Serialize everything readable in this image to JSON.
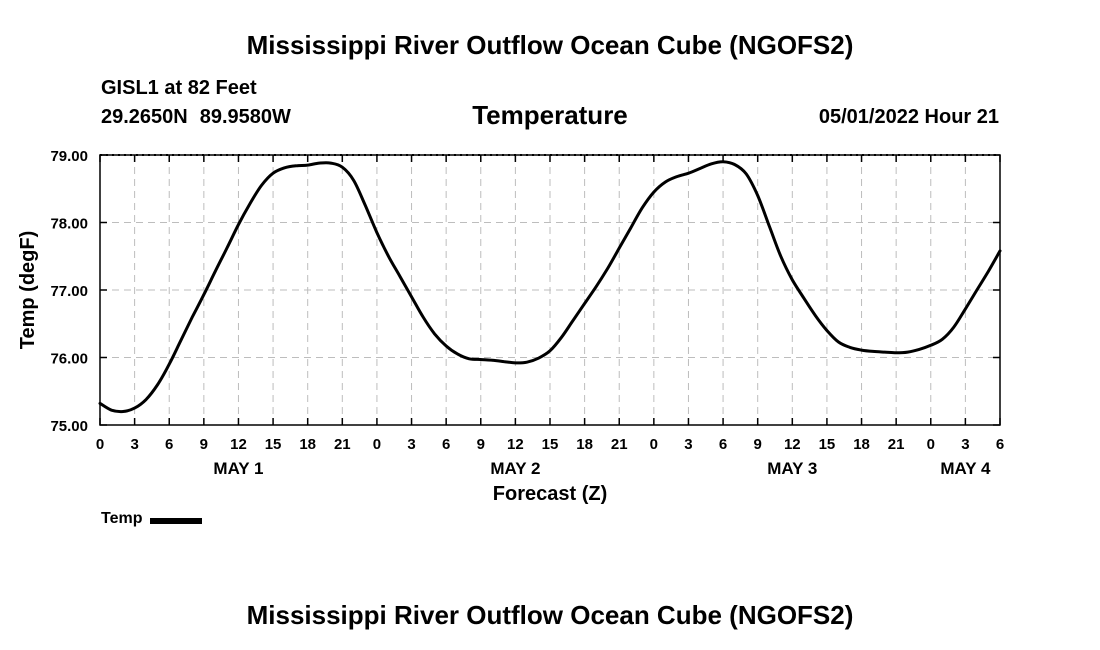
{
  "header": {
    "title": "Mississippi River Outflow Ocean Cube (NGOFS2)",
    "station": "GISL1 at 82 Feet",
    "lat": "29.2650N",
    "lon": "89.9580W",
    "parameter": "Temperature",
    "datetime": "05/01/2022 Hour 21"
  },
  "footer": {
    "title": "Mississippi River Outflow Ocean Cube (NGOFS2)"
  },
  "legend": {
    "label": "Temp"
  },
  "chart_data": {
    "type": "line",
    "title": "Temperature",
    "xlabel": "Forecast (Z)",
    "ylabel": "Temp (degF)",
    "ylim": [
      75.0,
      79.0
    ],
    "xlim_hours": [
      0,
      78
    ],
    "grid": true,
    "x_tick_labels": [
      "0",
      "3",
      "6",
      "9",
      "12",
      "15",
      "18",
      "21",
      "0",
      "3",
      "6",
      "9",
      "12",
      "15",
      "18",
      "21",
      "0",
      "3",
      "6",
      "9",
      "12",
      "15",
      "18",
      "21",
      "0",
      "3",
      "6"
    ],
    "y_tick_labels": [
      "75.00",
      "76.00",
      "77.00",
      "78.00",
      "79.00"
    ],
    "day_labels": [
      {
        "label": "MAY 1",
        "hour": 12
      },
      {
        "label": "MAY 2",
        "hour": 36
      },
      {
        "label": "MAY 3",
        "hour": 60
      },
      {
        "label": "MAY 4",
        "hour": 75
      }
    ],
    "series": [
      {
        "name": "Temp",
        "color": "#000000",
        "x_hours": [
          0,
          1,
          2,
          3,
          4,
          5,
          6,
          7,
          8,
          9,
          10,
          11,
          12,
          13,
          14,
          15,
          16,
          17,
          18,
          19,
          20,
          21,
          22,
          23,
          24,
          25,
          26,
          27,
          28,
          29,
          30,
          31,
          32,
          33,
          34,
          35,
          36,
          37,
          38,
          39,
          40,
          41,
          42,
          43,
          44,
          45,
          46,
          47,
          48,
          49,
          50,
          51,
          52,
          53,
          54,
          55,
          56,
          57,
          58,
          59,
          60,
          61,
          62,
          63,
          64,
          65,
          66,
          67,
          68,
          69,
          70,
          71,
          72,
          73,
          74,
          75,
          76,
          77,
          78
        ],
        "values": [
          75.32,
          75.22,
          75.2,
          75.25,
          75.38,
          75.6,
          75.9,
          76.25,
          76.6,
          76.93,
          77.28,
          77.62,
          77.97,
          78.28,
          78.55,
          78.73,
          78.81,
          78.84,
          78.85,
          78.88,
          78.88,
          78.82,
          78.62,
          78.25,
          77.85,
          77.5,
          77.2,
          76.9,
          76.6,
          76.35,
          76.17,
          76.05,
          75.98,
          75.97,
          75.96,
          75.94,
          75.92,
          75.93,
          75.99,
          76.1,
          76.3,
          76.55,
          76.8,
          77.05,
          77.32,
          77.62,
          77.92,
          78.22,
          78.45,
          78.6,
          78.68,
          78.73,
          78.8,
          78.87,
          78.9,
          78.86,
          78.72,
          78.4,
          77.95,
          77.5,
          77.15,
          76.88,
          76.62,
          76.4,
          76.23,
          76.15,
          76.11,
          76.09,
          76.08,
          76.07,
          76.08,
          76.12,
          76.18,
          76.27,
          76.45,
          76.72,
          77.0,
          77.28,
          77.58
        ]
      }
    ]
  }
}
